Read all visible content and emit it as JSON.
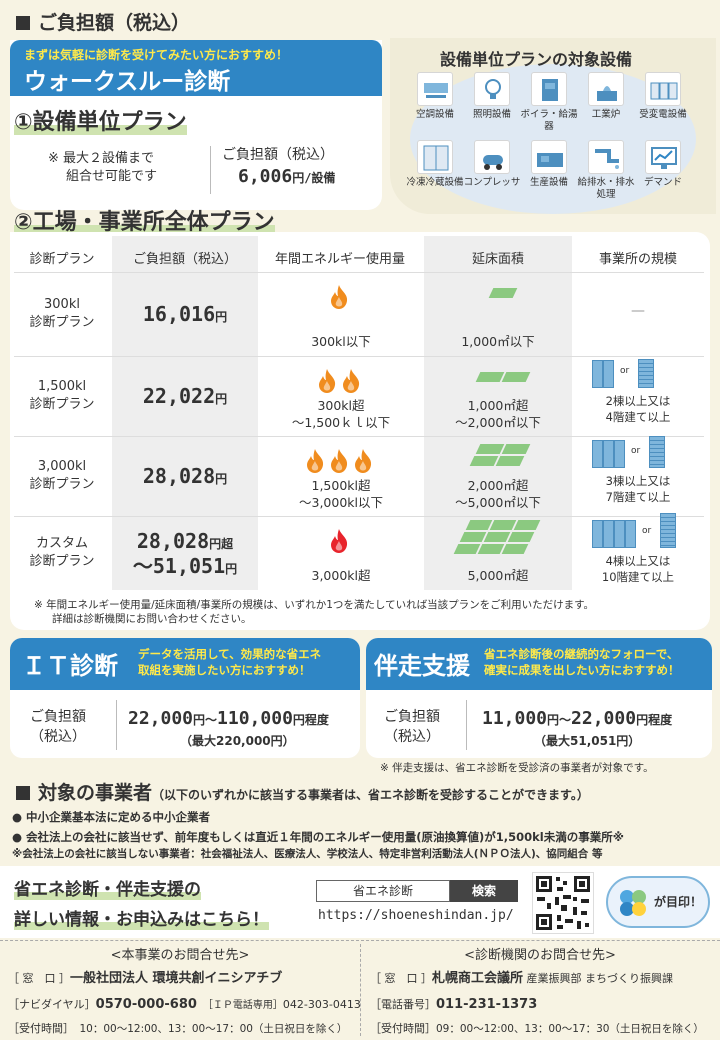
{
  "header": {
    "title": "ご負担額（税込）"
  },
  "walkthrough": {
    "tagline": "まずは気軽に診断を受けてみたい方におすすめ！",
    "title": "ウォークスルー診断",
    "plan1_title": "①設備単位プラン",
    "plan1_note1": "※ 最大２設備まで",
    "plan1_note2": "組合せ可能です",
    "plan1_fee_label": "ご負担額（税込）",
    "plan1_fee_value": "6,006",
    "plan1_fee_unit": "円/設備",
    "plan2_title": "②工場・事業所全体プラン"
  },
  "equipment": {
    "title": "設備単位プランの対象設備",
    "items": [
      {
        "label": "空調設備",
        "icon": "air-conditioner-icon"
      },
      {
        "label": "照明設備",
        "icon": "light-bulb-icon"
      },
      {
        "label": "ボイラ・給湯器",
        "icon": "boiler-icon"
      },
      {
        "label": "工業炉",
        "icon": "furnace-icon"
      },
      {
        "label": "受変電設備",
        "icon": "substation-icon"
      },
      {
        "label": "冷凍冷蔵設備",
        "icon": "refrigerator-icon"
      },
      {
        "label": "コンプレッサ",
        "icon": "compressor-icon"
      },
      {
        "label": "生産設備",
        "icon": "production-machine-icon"
      },
      {
        "label": "給排水・排水処理",
        "icon": "water-pipe-icon"
      },
      {
        "label": "デマンド",
        "icon": "demand-monitor-icon"
      }
    ]
  },
  "table": {
    "headers": [
      "診断プラン",
      "ご負担額（税込）",
      "年間エネルギー使用量",
      "延床面積",
      "事業所の規模"
    ],
    "rows": [
      {
        "plan1": "300kl",
        "plan2": "診断プラン",
        "price": "16,016",
        "unit": "円",
        "energy1": "300kl以下",
        "energy2": "",
        "area1": "1,000㎡以下",
        "area2": "",
        "scale1": "—",
        "scale2": "",
        "flames": 1,
        "tiles": 1
      },
      {
        "plan1": "1,500kl",
        "plan2": "診断プラン",
        "price": "22,022",
        "unit": "円",
        "energy1": "300kl超",
        "energy2": "～1,500ｋｌ以下",
        "area1": "1,000㎡超",
        "area2": "～2,000㎡以下",
        "scale1": "2棟以上又は",
        "scale2": "4階建て以上",
        "flames": 2,
        "tiles": 2
      },
      {
        "plan1": "3,000kl",
        "plan2": "診断プラン",
        "price": "28,028",
        "unit": "円",
        "energy1": "1,500kl超",
        "energy2": "～3,000kl以下",
        "area1": "2,000㎡超",
        "area2": "～5,000㎡以下",
        "scale1": "3棟以上又は",
        "scale2": "7階建て以上",
        "flames": 3,
        "tiles": 4
      },
      {
        "plan1": "カスタム",
        "plan2": "診断プラン",
        "price": "28,028",
        "unit": "円超",
        "price2": "～51,051",
        "unit2": "円",
        "energy1": "3,000kl超",
        "energy2": "",
        "area1": "5,000㎡超",
        "area2": "",
        "scale1": "4棟以上又は",
        "scale2": "10階建て以上",
        "flames": 1,
        "tiles": 9
      }
    ],
    "or_label": "or",
    "note1": "※ 年間エネルギー使用量/延床面積/事業所の規模は、いずれか1つを満たしていれば当該プランをご利用いただけます。",
    "note2": "詳細は診断機関にお問い合わせください。"
  },
  "it": {
    "title": "ＩＴ診断",
    "desc1": "データを活用して、効果的な省エネ",
    "desc2": "取組を実施したい方におすすめ！",
    "fee_label1": "ご負担額",
    "fee_label2": "（税込）",
    "fee_a": "22,000",
    "fee_mid": "円～",
    "fee_b": "110,000",
    "fee_suffix": "円程度",
    "fee_max": "（最大220,000円）"
  },
  "support": {
    "title": "伴走支援",
    "desc1": "省エネ診断後の継続的なフォローで、",
    "desc2": "確実に成果を出したい方におすすめ！",
    "fee_label1": "ご負担額",
    "fee_label2": "（税込）",
    "fee_a": "11,000",
    "fee_mid": "円～",
    "fee_b": "22,000",
    "fee_suffix": "円程度",
    "fee_max": "（最大51,051円）",
    "note": "※ 伴走支援は、省エネ診断を受診済の事業者が対象です。"
  },
  "target": {
    "title": "対象の事業者",
    "subtitle": "（以下のいずれかに該当する事業者は、省エネ診断を受診することができます。）",
    "item1": "● 中小企業基本法に定める中小企業者",
    "item2": "● 会社法上の会社に該当せず、前年度もしくは直近１年間のエネルギー使用量(原油換算値)が1,500kl未満の事業所※",
    "note": "※会社法上の会社に該当しない事業者：社会福祉法人、医療法人、学校法人、特定非営利活動法人(ＮＰＯ法人)、協同組合 等"
  },
  "info": {
    "line1": "省エネ診断・伴走支援の",
    "line2": "詳しい情報・お申込みはこちら！",
    "search_value": "省エネ診断",
    "search_button": "検索",
    "url": "https://shoeneshindan.jp/",
    "mascot_text": "が目印！"
  },
  "contact_left": {
    "title": "<本事業のお問合せ先>",
    "k1": "［ 窓　口 ］",
    "v1": "一般社団法人 環境共創イニシアチブ",
    "k2": "［ナビダイヤル］",
    "v2": "0570-000-680",
    "k3": "［ＩＰ電話専用］",
    "v3": "042-303-0413",
    "k4": "［受付時間］",
    "v4": "10：00～12:00、13：00～17：00（土日祝日を除く）"
  },
  "contact_right": {
    "title": "<診断機関のお問合せ先>",
    "k1": "［ 窓　口 ］",
    "v1": "札幌商工会議所",
    "v1b": "産業振興部 まちづくり振興課",
    "k2": "［電話番号］",
    "v2": "011-231-1373",
    "k3": "［受付時間］",
    "v3": "09：00～12:00、13：00～17：30（土日祝日を除く）"
  },
  "colors": {
    "blue": "#2f86c5",
    "yellow": "#ffe94a",
    "green": "#8bc980",
    "flame": "#f08c1e",
    "red": "#e8242c"
  }
}
